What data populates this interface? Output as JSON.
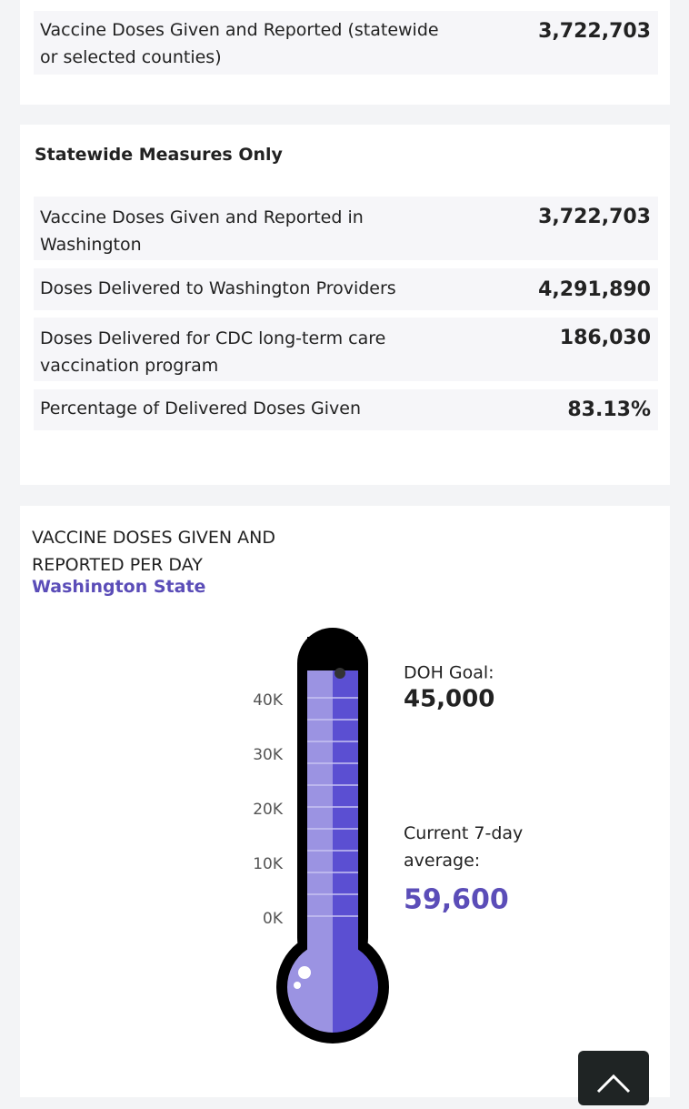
{
  "top_row": {
    "label": "Vaccine Doses Given and Reported (statewide or selected counties)",
    "value": "3,722,703"
  },
  "statewide": {
    "title": "Statewide Measures Only",
    "rows": [
      [
        "Vaccine Doses Given and Reported in Washington",
        "3,722,703"
      ],
      [
        "Doses Delivered to Washington Providers",
        "4,291,890"
      ],
      [
        "Doses Delivered for CDC long-term care vaccination program",
        "186,030"
      ],
      [
        "Percentage of Delivered Doses Given",
        "83.13%"
      ]
    ]
  },
  "thermometer": {
    "title": "VACCINE DOSES GIVEN AND REPORTED PER DAY",
    "subtitle": "Washington State",
    "yticks": [
      {
        "value": 0,
        "label": "0K"
      },
      {
        "value": 10000,
        "label": "10K"
      },
      {
        "value": 20000,
        "label": "20K"
      },
      {
        "value": 30000,
        "label": "30K"
      },
      {
        "value": 40000,
        "label": "40K"
      }
    ],
    "goal_label": "DOH Goal:",
    "goal": {
      "value": 45000,
      "label": "45,000"
    },
    "current_label": "Current 7-day average:",
    "current": {
      "value": 59600,
      "label": "59,600"
    }
  }
}
